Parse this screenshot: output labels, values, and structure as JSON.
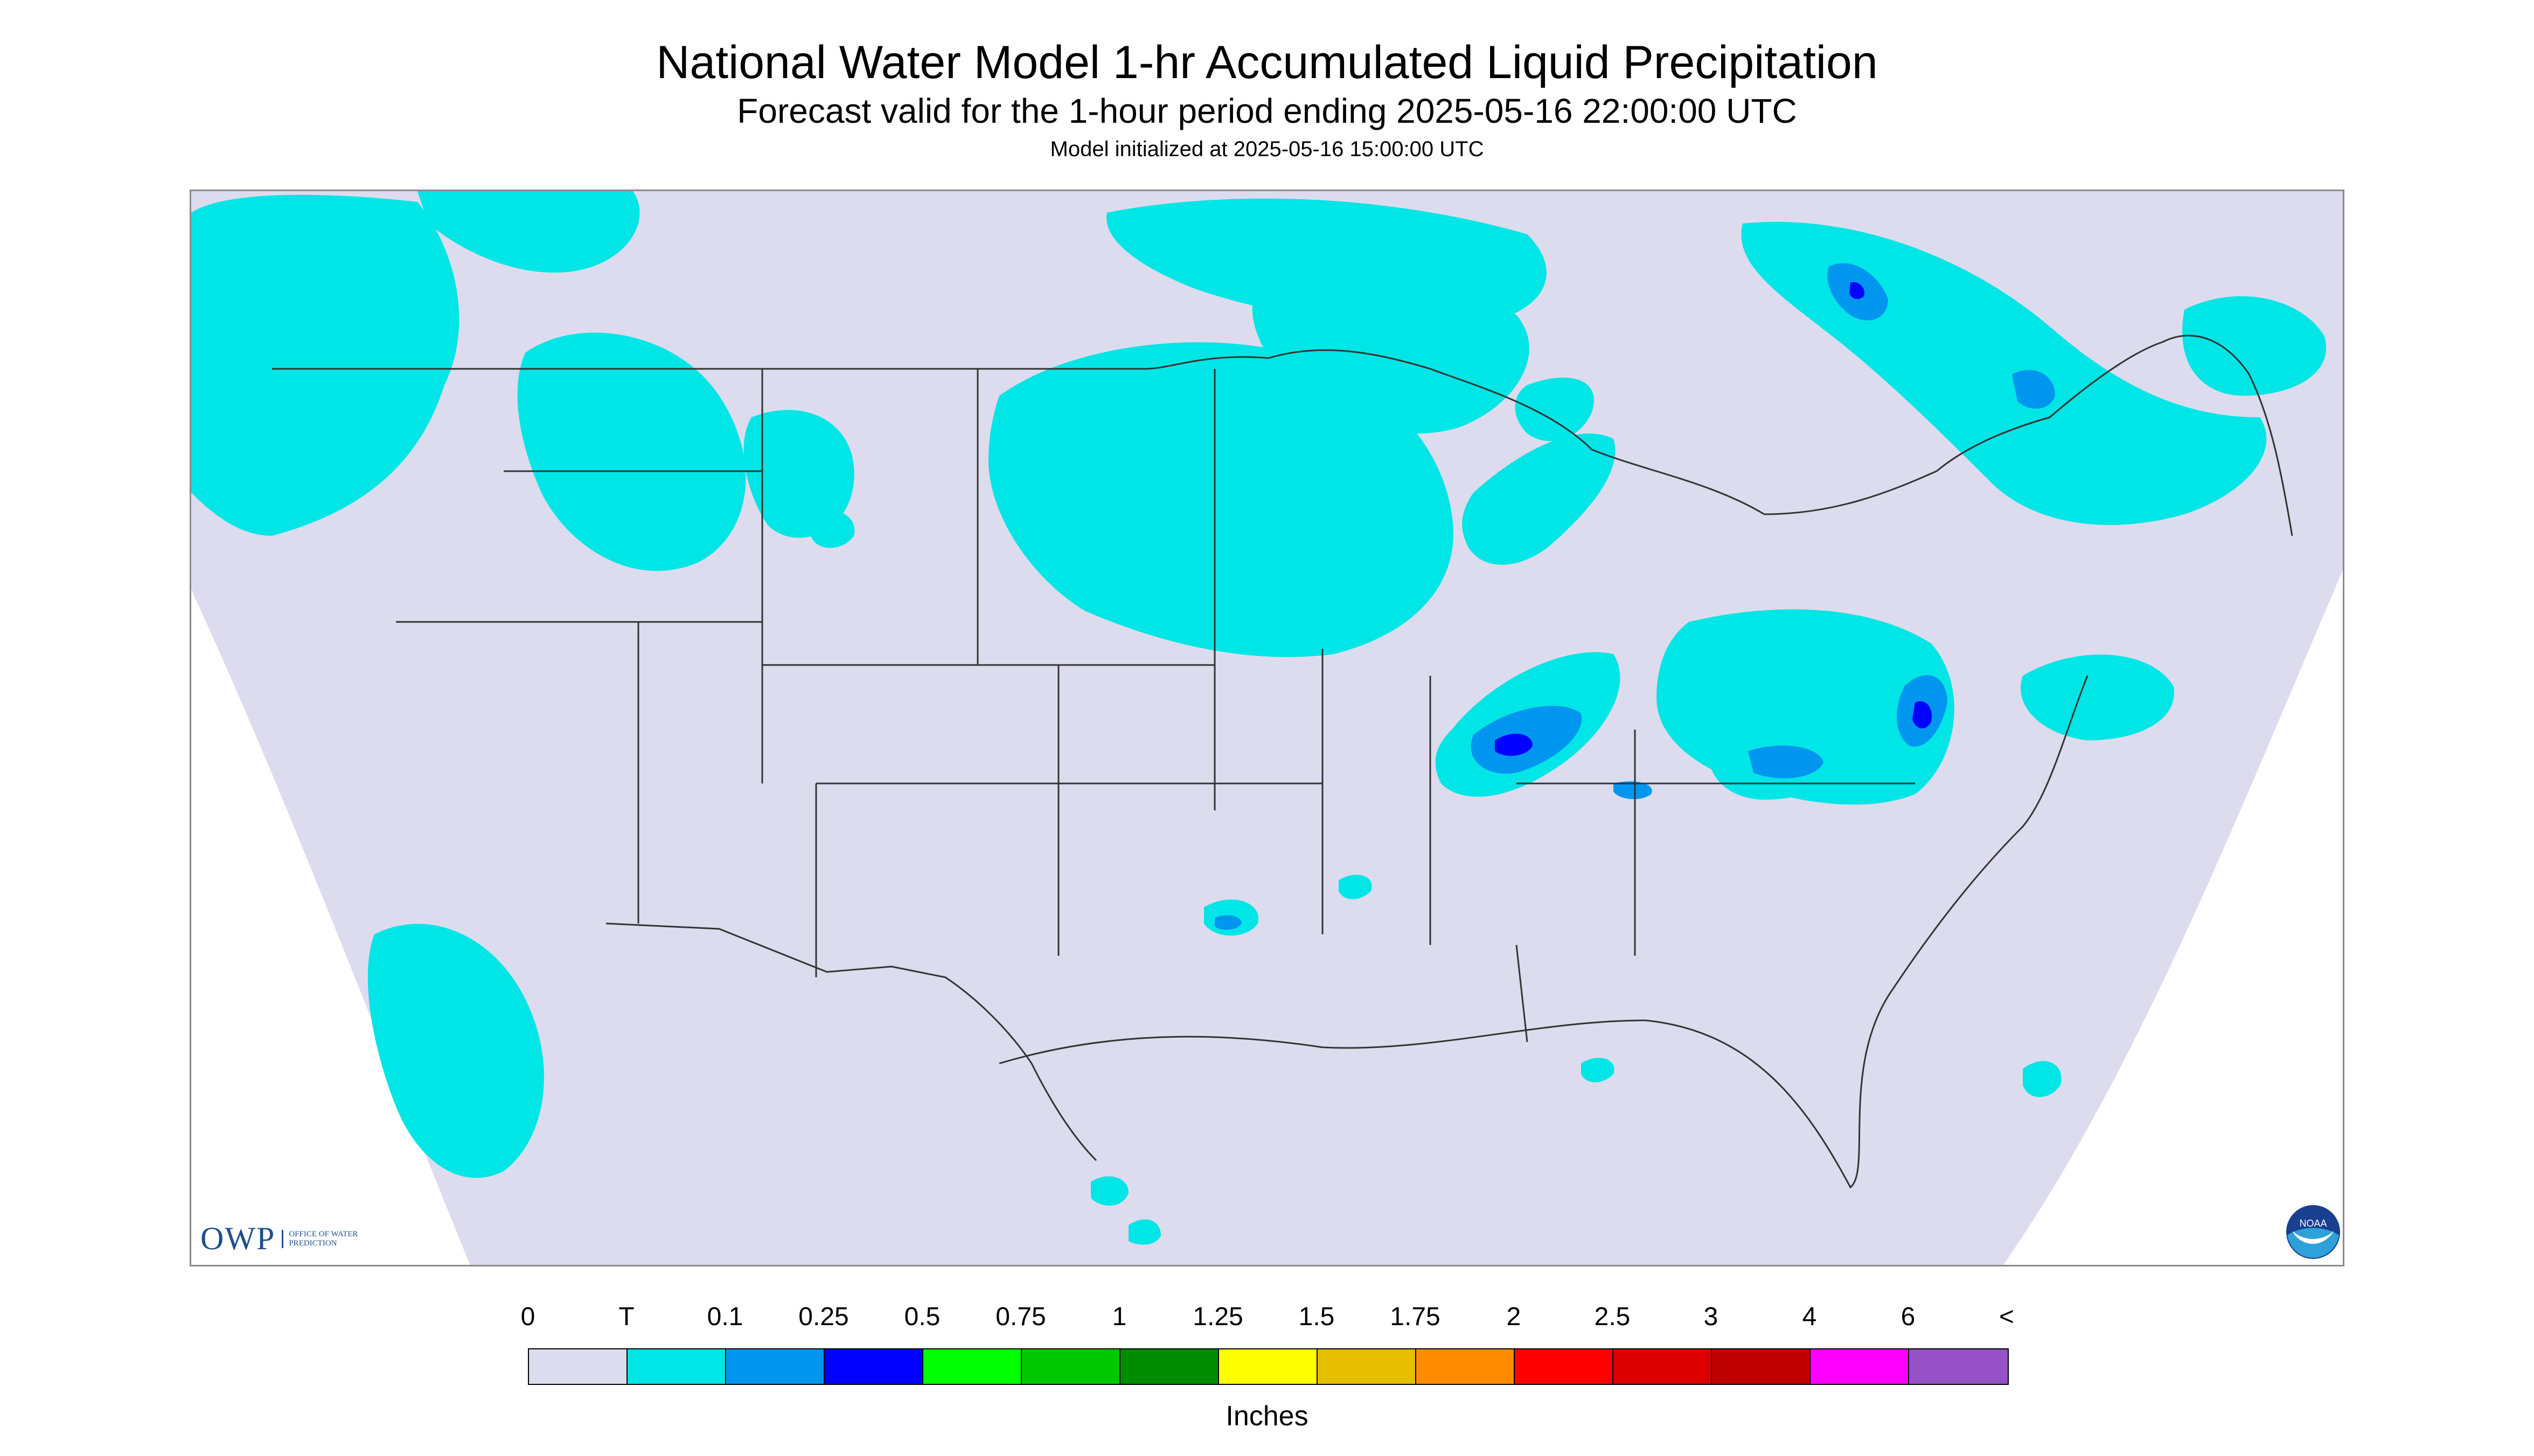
{
  "header": {
    "title": "National Water Model 1-hr Accumulated Liquid Precipitation",
    "subtitle": "Forecast valid for the 1-hour period ending 2025-05-16 22:00:00 UTC",
    "init": "Model initialized at 2025-05-16 15:00:00 UTC"
  },
  "map": {
    "region": "CONUS",
    "background_color": "#dcdcee",
    "outside_color": "#ffffff",
    "trace_color": "#00e5e5",
    "mod_color": "#0096f0",
    "heavy_color": "#0000ff",
    "line_color": "#333333"
  },
  "logos": {
    "owp_letters": "OWP",
    "owp_text": "OFFICE OF WATER PREDICTION",
    "noaa_text": "NOAA"
  },
  "legend": {
    "tick_labels": [
      "0",
      "T",
      "0.1",
      "0.25",
      "0.5",
      "0.75",
      "1",
      "1.25",
      "1.5",
      "1.75",
      "2",
      "2.5",
      "3",
      "4",
      "6",
      "<"
    ],
    "colors": [
      "#dcdcee",
      "#00e5e5",
      "#0096f0",
      "#0000ff",
      "#00ff00",
      "#00c800",
      "#008c00",
      "#ffff00",
      "#e6be00",
      "#ff8c00",
      "#ff0000",
      "#dc0000",
      "#be0000",
      "#ff00ff",
      "#9650c8"
    ],
    "units": "Inches"
  }
}
